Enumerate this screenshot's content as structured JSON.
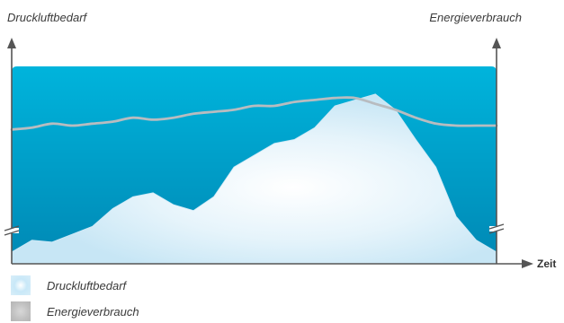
{
  "chart_data": {
    "type": "area",
    "left_axis_label": "Druckluftbedarf",
    "right_axis_label": "Energieverbrauch",
    "x_axis_label": "Zeit",
    "colors": {
      "background_top": "#00b4dc",
      "background_bottom": "#0088b4",
      "demand_fill": "#ffffff",
      "demand_edge": "#cfe9f6",
      "energy_line": "#b8bcc0",
      "axis": "#555555"
    },
    "x": [
      0,
      1,
      2,
      3,
      4,
      5,
      6,
      7,
      8,
      9,
      10,
      11,
      12,
      13,
      14,
      15,
      16,
      17,
      18,
      19,
      20,
      21,
      22,
      23,
      24
    ],
    "series": [
      {
        "name": "Druckluftbedarf",
        "style": "filled area",
        "values": [
          0.06,
          0.12,
          0.11,
          0.15,
          0.19,
          0.28,
          0.34,
          0.36,
          0.3,
          0.27,
          0.34,
          0.49,
          0.55,
          0.61,
          0.63,
          0.69,
          0.8,
          0.83,
          0.86,
          0.78,
          0.63,
          0.49,
          0.24,
          0.12,
          0.06
        ]
      },
      {
        "name": "Energieverbrauch",
        "style": "line",
        "values": [
          0.68,
          0.69,
          0.71,
          0.7,
          0.71,
          0.72,
          0.74,
          0.73,
          0.74,
          0.76,
          0.77,
          0.78,
          0.8,
          0.8,
          0.82,
          0.83,
          0.84,
          0.84,
          0.81,
          0.78,
          0.74,
          0.71,
          0.7,
          0.7,
          0.7
        ]
      }
    ],
    "axis_breaks": [
      "left",
      "right"
    ],
    "grid": false,
    "legend_position": "bottom-left"
  },
  "legend": [
    {
      "label": "Druckluftbedarf"
    },
    {
      "label": "Energieverbrauch"
    }
  ]
}
